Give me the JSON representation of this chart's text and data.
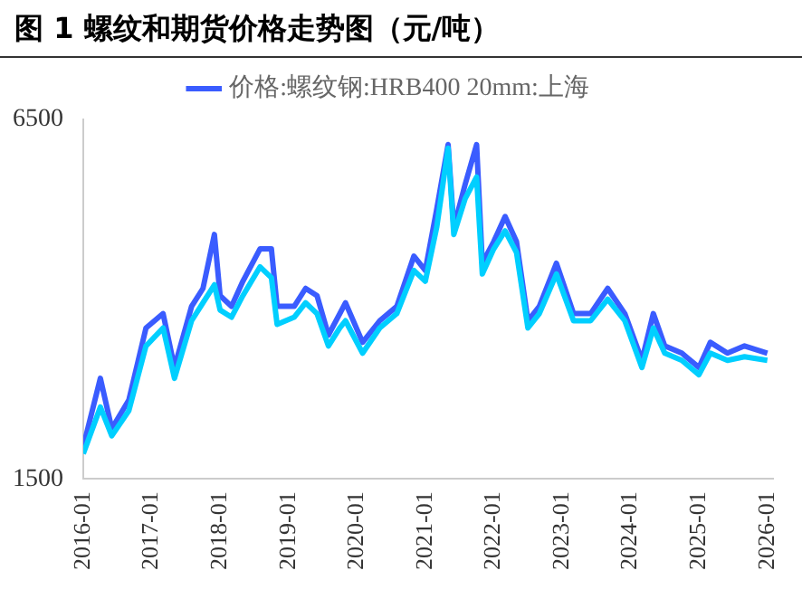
{
  "chart_data": {
    "type": "line",
    "title": "图 1 螺纹和期货价格走势图（元/吨）",
    "x": [
      "2016-01",
      "2016-04",
      "2016-06",
      "2016-09",
      "2016-12",
      "2017-03",
      "2017-05",
      "2017-08",
      "2017-10",
      "2017-12",
      "2018-01",
      "2018-03",
      "2018-05",
      "2018-08",
      "2018-10",
      "2018-11",
      "2019-02",
      "2019-04",
      "2019-06",
      "2019-08",
      "2019-10",
      "2019-11",
      "2020-02",
      "2020-05",
      "2020-08",
      "2020-11",
      "2021-01",
      "2021-03",
      "2021-05",
      "2021-06",
      "2021-08",
      "2021-10",
      "2021-11",
      "2022-01",
      "2022-03",
      "2022-05",
      "2022-07",
      "2022-09",
      "2022-12",
      "2023-03",
      "2023-06",
      "2023-09",
      "2023-12",
      "2024-03",
      "2024-05",
      "2024-07",
      "2024-10",
      "2025-01",
      "2025-03",
      "2025-06",
      "2025-09",
      "2026-01"
    ],
    "series": [
      {
        "name": "价格:螺纹钢:HRB400 20mm:上海",
        "color": "#3a5cff",
        "values": [
          1950,
          2900,
          2200,
          2600,
          3600,
          3800,
          3050,
          3900,
          4150,
          4900,
          4050,
          3900,
          4250,
          4700,
          4700,
          3900,
          3900,
          4150,
          4050,
          3500,
          3800,
          3950,
          3400,
          3700,
          3900,
          4600,
          4400,
          5250,
          6150,
          5000,
          5600,
          6150,
          4500,
          4800,
          5150,
          4800,
          3700,
          3900,
          4500,
          3800,
          3800,
          4150,
          3800,
          3150,
          3800,
          3350,
          3250,
          3050,
          3400,
          3250,
          3350,
          3250
        ]
      },
      {
        "color": "#00cfff",
        "values": [
          1850,
          2500,
          2100,
          2450,
          3350,
          3600,
          2900,
          3700,
          3950,
          4200,
          3850,
          3750,
          4050,
          4450,
          4300,
          3650,
          3750,
          3950,
          3800,
          3350,
          3600,
          3700,
          3250,
          3600,
          3800,
          4400,
          4250,
          5000,
          6100,
          4900,
          5400,
          5700,
          4350,
          4700,
          4950,
          4650,
          3600,
          3800,
          4350,
          3700,
          3700,
          4000,
          3700,
          3050,
          3600,
          3250,
          3150,
          2950,
          3250,
          3150,
          3200,
          3150
        ]
      }
    ],
    "xlim": [
      "2016-01",
      "2026-02"
    ],
    "xticks": [
      "2016-01",
      "2017-01",
      "2018-01",
      "2019-01",
      "2020-01",
      "2021-01",
      "2022-01",
      "2023-01",
      "2024-01",
      "2025-01",
      "2026-01"
    ],
    "ylim": [
      1500,
      6500
    ],
    "yticks": [
      1500,
      6500
    ],
    "grid": false,
    "legend": "top",
    "marker": "none",
    "line_style": "solid"
  }
}
